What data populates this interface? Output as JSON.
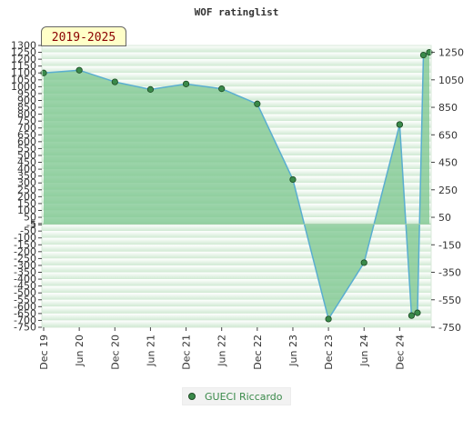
{
  "title": "WOF ratinglist",
  "badge": "2019-2025",
  "colors": {
    "line": "#5aaed0",
    "fill": "#7bc58e",
    "marker": "#3a8a4a",
    "legend_text": "#3a8a4a"
  },
  "chart_data": {
    "type": "area",
    "series": [
      {
        "name": "GUECI Riccardo",
        "x": [
          "2019-12",
          "2020-06",
          "2020-12",
          "2021-06",
          "2021-12",
          "2022-06",
          "2022-12",
          "2023-06",
          "2023-12",
          "2024-06",
          "2024-12",
          "2024-12",
          "2025-02",
          "2025-03",
          "2025-04",
          "2025-05"
        ],
        "values": [
          1100,
          1120,
          1035,
          980,
          1020,
          985,
          875,
          325,
          -690,
          -280,
          725,
          725,
          -665,
          -645,
          1230,
          1250
        ]
      }
    ],
    "x_tick_labels": [
      "Dec 19",
      "Jun 20",
      "Dec 20",
      "Jun 21",
      "Dec 21",
      "Jun 22",
      "Dec 22",
      "Jun 23",
      "Dec 23",
      "Jun 24",
      "Dec 24"
    ],
    "y_left": {
      "range": [
        -750,
        1300
      ],
      "ticks": [
        1300,
        1250,
        1200,
        1150,
        1100,
        1050,
        1000,
        950,
        900,
        850,
        800,
        750,
        700,
        650,
        600,
        550,
        500,
        450,
        400,
        350,
        300,
        250,
        200,
        150,
        100,
        50,
        5,
        -5,
        -50,
        -100,
        -150,
        -200,
        -250,
        -300,
        -350,
        -400,
        -450,
        -500,
        -550,
        -600,
        -650,
        -700,
        -750
      ]
    },
    "y_right": {
      "range": [
        -750,
        1300
      ],
      "ticks": [
        1250,
        1050,
        850,
        650,
        450,
        250,
        50,
        -150,
        -350,
        -550,
        -750
      ]
    },
    "legend": {
      "position": "bottom-center",
      "entries": [
        "GUECI Riccardo"
      ]
    },
    "grid": true
  }
}
